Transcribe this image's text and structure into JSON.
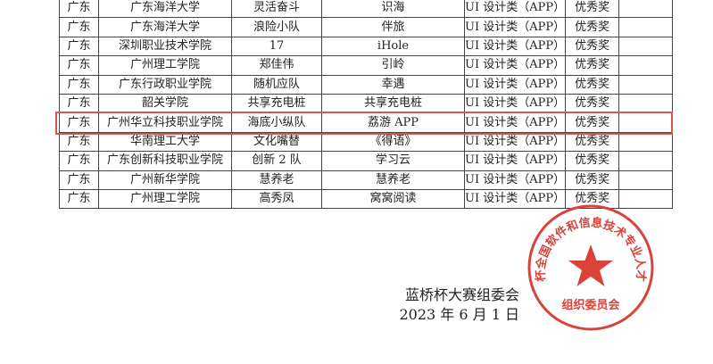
{
  "table": {
    "rows": [
      [
        "广东",
        "广东海洋大学",
        "灵活奋斗",
        "识海",
        "UI 设计类（APP）",
        "优秀奖",
        ""
      ],
      [
        "广东",
        "广东海洋大学",
        "浪险小队",
        "伴旅",
        "UI 设计类（APP）",
        "优秀奖",
        ""
      ],
      [
        "广东",
        "深圳职业技术学院",
        "17",
        "iHole",
        "UI 设计类（APP）",
        "优秀奖",
        ""
      ],
      [
        "广东",
        "广州理工学院",
        "郑佳伟",
        "引岭",
        "UI 设计类（APP）",
        "优秀奖",
        ""
      ],
      [
        "广东",
        "广东行政职业学院",
        "随机应队",
        "幸遇",
        "UI 设计类（APP）",
        "优秀奖",
        ""
      ],
      [
        "广东",
        "韶关学院",
        "共享充电桩",
        "共享充电桩",
        "UI 设计类（APP）",
        "优秀奖",
        ""
      ],
      [
        "广东",
        "广州华立科技职业学院",
        "海底小纵队",
        "荔游 APP",
        "UI 设计类（APP）",
        "优秀奖",
        ""
      ],
      [
        "广东",
        "华南理工大学",
        "文化嘴替",
        "《得语》",
        "UI 设计类（APP）",
        "优秀奖",
        ""
      ],
      [
        "广东",
        "广东创新科技职业学院",
        "创新 2 队",
        "学习云",
        "UI 设计类（APP）",
        "优秀奖",
        ""
      ],
      [
        "广东",
        "广州新华学院",
        "慧养老",
        "慧养老",
        "UI 设计类（APP）",
        "优秀奖",
        ""
      ],
      [
        "广东",
        "广州理工学院",
        "高秀凤",
        "窝窝阅读",
        "UI 设计类（APP）",
        "优秀奖",
        ""
      ]
    ],
    "highlighted_row": 6,
    "highlight_color": "#d9534f"
  },
  "seal": {
    "text_outer": "蓝桥杯全国软件和信息技术专业人才大赛",
    "text_inner": "组织委员会",
    "color": "#d9433a"
  },
  "signature": {
    "org": "蓝桥杯大赛组委会",
    "date": "2023 年 6 月 1 日"
  }
}
